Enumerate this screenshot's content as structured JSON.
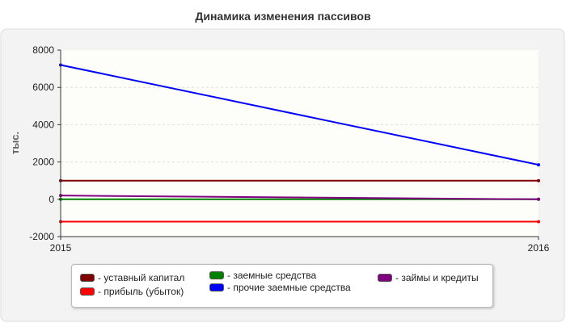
{
  "chart_data": {
    "type": "line",
    "title": "Динамика изменения пассивов",
    "ylabel": "тыс.",
    "xlabel": "",
    "x": [
      "2015",
      "2016"
    ],
    "ylim": [
      -2000,
      8000
    ],
    "yticks": [
      "-2000",
      "0",
      "2000",
      "4000",
      "6000",
      "8000"
    ],
    "grid": true,
    "legend_position": "bottom",
    "series": [
      {
        "name": "- уставный капитал",
        "color": "#800000",
        "values": [
          1000,
          1000
        ]
      },
      {
        "name": "- заемные средства",
        "color": "#008000",
        "values": [
          0,
          0
        ]
      },
      {
        "name": "- займы и кредиты",
        "color": "#800080",
        "values": [
          200,
          0
        ]
      },
      {
        "name": "- прибыль (убыток)",
        "color": "#ff0000",
        "values": [
          -1200,
          -1200
        ]
      },
      {
        "name": "- прочие заемные средства",
        "color": "#0000ff",
        "values": [
          7200,
          1850
        ]
      }
    ]
  }
}
